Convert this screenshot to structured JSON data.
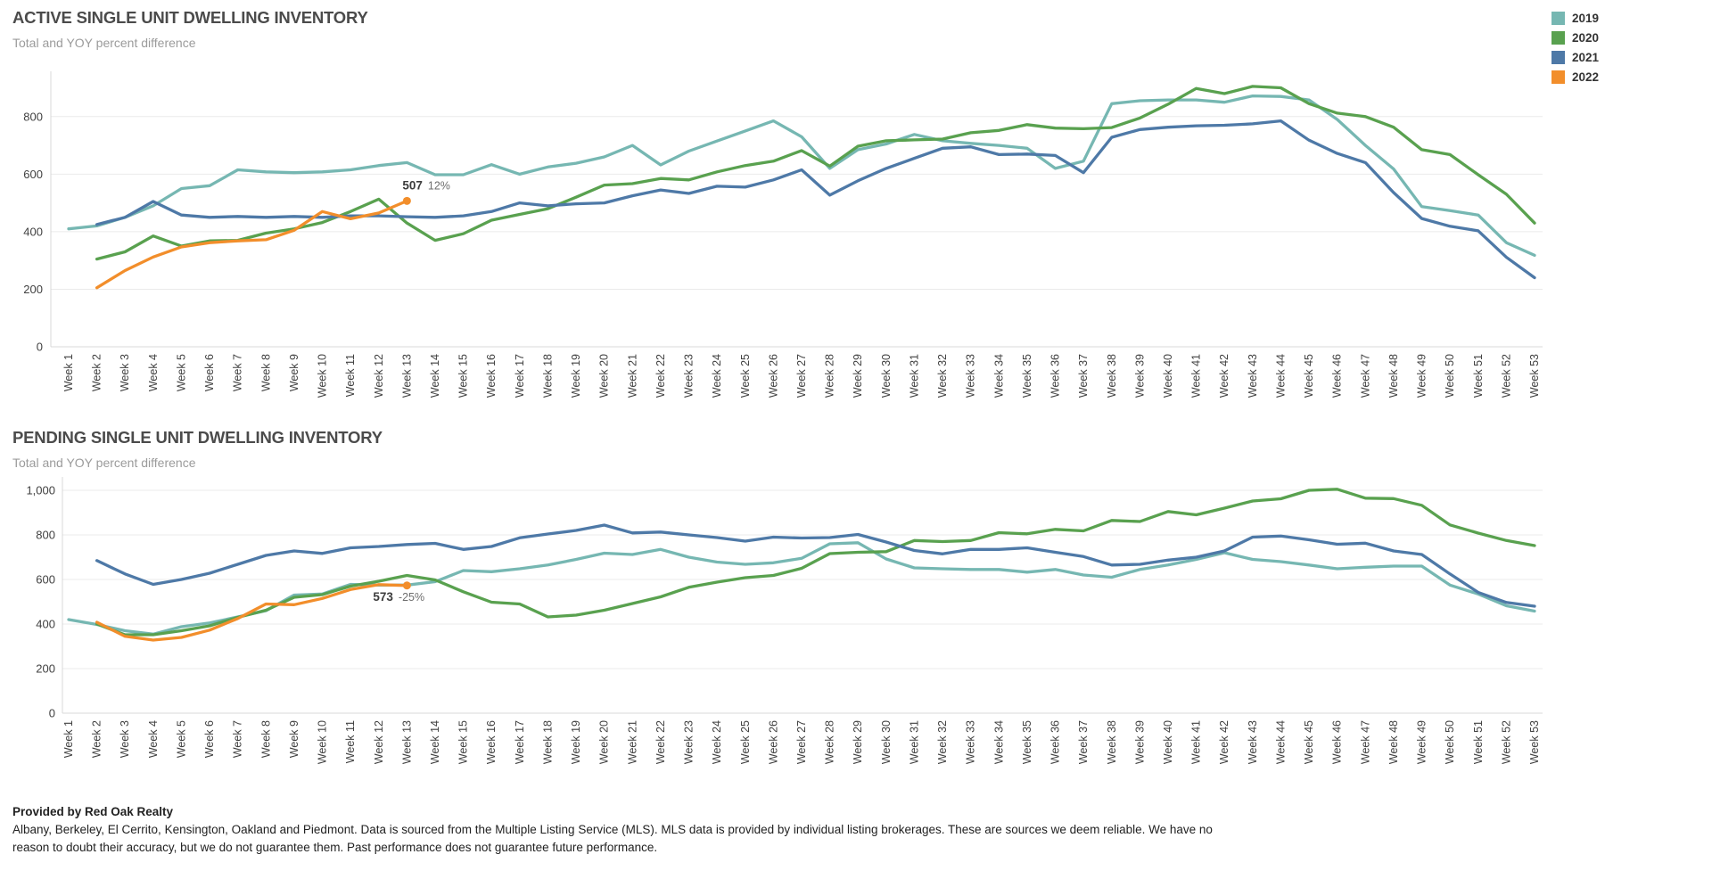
{
  "legend": {
    "items": [
      {
        "label": "2019",
        "color": "#76b7b2"
      },
      {
        "label": "2020",
        "color": "#59a14f"
      },
      {
        "label": "2021",
        "color": "#4e79a7"
      },
      {
        "label": "2022",
        "color": "#f28e2b"
      }
    ]
  },
  "weeks": [
    "Week 1",
    "Week 2",
    "Week 3",
    "Week 4",
    "Week 5",
    "Week 6",
    "Week 7",
    "Week 8",
    "Week 9",
    "Week 10",
    "Week 11",
    "Week 12",
    "Week 13",
    "Week 14",
    "Week 15",
    "Week 16",
    "Week 17",
    "Week 18",
    "Week 19",
    "Week 20",
    "Week 21",
    "Week 22",
    "Week 23",
    "Week 24",
    "Week 25",
    "Week 26",
    "Week 27",
    "Week 28",
    "Week 29",
    "Week 30",
    "Week 31",
    "Week 32",
    "Week 33",
    "Week 34",
    "Week 35",
    "Week 36",
    "Week 37",
    "Week 38",
    "Week 39",
    "Week 40",
    "Week 41",
    "Week 42",
    "Week 43",
    "Week 44",
    "Week 45",
    "Week 46",
    "Week 47",
    "Week 48",
    "Week 49",
    "Week 50",
    "Week 51",
    "Week 52",
    "Week 53"
  ],
  "chart_data": [
    {
      "id": "active",
      "type": "line",
      "title": "ACTIVE SINGLE UNIT DWELLING INVENTORY",
      "subtitle": "Total and YOY percent difference",
      "xlabel": "",
      "ylabel": "",
      "ylim": [
        0,
        950
      ],
      "grid": "horizontal",
      "legend_position": "top-right",
      "y_ticks": [
        {
          "value": 0,
          "label": "0"
        },
        {
          "value": 200,
          "label": "200"
        },
        {
          "value": 400,
          "label": "400"
        },
        {
          "value": 600,
          "label": "600"
        },
        {
          "value": 800,
          "label": "800"
        }
      ],
      "series": [
        {
          "name": "2019",
          "color": "#76b7b2",
          "values": [
            410,
            420,
            450,
            490,
            550,
            560,
            615,
            608,
            605,
            608,
            615,
            630,
            640,
            598,
            598,
            633,
            600,
            625,
            638,
            660,
            700,
            632,
            680,
            715,
            750,
            785,
            730,
            620,
            685,
            705,
            738,
            716,
            707,
            700,
            690,
            620,
            645,
            845,
            855,
            858,
            858,
            850,
            872,
            870,
            858,
            790,
            700,
            618,
            487,
            473,
            458,
            362,
            318
          ]
        },
        {
          "name": "2020",
          "color": "#59a14f",
          "values": [
            null,
            305,
            330,
            385,
            350,
            368,
            370,
            395,
            410,
            432,
            470,
            513,
            430,
            370,
            393,
            440,
            460,
            480,
            520,
            562,
            567,
            585,
            580,
            608,
            630,
            645,
            682,
            628,
            697,
            716,
            719,
            722,
            744,
            752,
            772,
            760,
            758,
            762,
            795,
            843,
            898,
            880,
            905,
            900,
            845,
            812,
            800,
            763,
            685,
            668,
            598,
            530,
            430
          ]
        },
        {
          "name": "2021",
          "color": "#4e79a7",
          "values": [
            null,
            425,
            450,
            505,
            458,
            450,
            453,
            450,
            453,
            450,
            455,
            455,
            452,
            450,
            455,
            470,
            500,
            490,
            497,
            500,
            525,
            545,
            533,
            558,
            555,
            580,
            615,
            527,
            577,
            620,
            655,
            690,
            695,
            668,
            670,
            665,
            605,
            728,
            755,
            763,
            768,
            770,
            775,
            785,
            718,
            672,
            640,
            536,
            446,
            419,
            403,
            311,
            240
          ]
        },
        {
          "name": "2022",
          "color": "#f28e2b",
          "values": [
            null,
            205,
            265,
            312,
            347,
            362,
            368,
            372,
            405,
            470,
            445,
            465,
            507,
            null,
            null,
            null,
            null,
            null,
            null,
            null,
            null,
            null,
            null,
            null,
            null,
            null,
            null,
            null,
            null,
            null,
            null,
            null,
            null,
            null,
            null,
            null,
            null,
            null,
            null,
            null,
            null,
            null,
            null,
            null,
            null,
            null,
            null,
            null,
            null,
            null,
            null,
            null,
            null
          ]
        }
      ],
      "annotation": {
        "series": "2022",
        "week_number": 13,
        "value": 507,
        "value_label": "507",
        "pct_label": "12%"
      }
    },
    {
      "id": "pending",
      "type": "line",
      "title": "PENDING SINGLE UNIT DWELLING INVENTORY",
      "subtitle": "Total and YOY percent difference",
      "xlabel": "",
      "ylabel": "",
      "ylim": [
        0,
        1060
      ],
      "grid": "horizontal",
      "legend_position": "shared-top-right",
      "y_ticks": [
        {
          "value": 0,
          "label": "0"
        },
        {
          "value": 200,
          "label": "200"
        },
        {
          "value": 400,
          "label": "400"
        },
        {
          "value": 600,
          "label": "600"
        },
        {
          "value": 800,
          "label": "800"
        },
        {
          "value": 1000,
          "label": "1,000"
        }
      ],
      "series": [
        {
          "name": "2019",
          "color": "#76b7b2",
          "values": [
            420,
            398,
            370,
            355,
            388,
            405,
            432,
            460,
            530,
            535,
            578,
            575,
            575,
            590,
            640,
            635,
            648,
            665,
            690,
            718,
            712,
            735,
            700,
            678,
            668,
            675,
            695,
            760,
            765,
            692,
            652,
            648,
            645,
            645,
            633,
            645,
            620,
            610,
            645,
            665,
            690,
            720,
            690,
            680,
            665,
            648,
            655,
            660,
            660,
            575,
            535,
            482,
            458
          ]
        },
        {
          "name": "2020",
          "color": "#59a14f",
          "values": [
            null,
            400,
            352,
            352,
            370,
            392,
            430,
            462,
            520,
            532,
            570,
            592,
            618,
            598,
            545,
            498,
            490,
            432,
            440,
            462,
            492,
            522,
            565,
            588,
            608,
            618,
            650,
            716,
            722,
            725,
            775,
            770,
            775,
            810,
            805,
            825,
            818,
            865,
            860,
            905,
            890,
            920,
            952,
            962,
            1000,
            1005,
            965,
            963,
            933,
            845,
            808,
            775,
            752
          ]
        },
        {
          "name": "2021",
          "color": "#4e79a7",
          "values": [
            null,
            685,
            625,
            578,
            600,
            628,
            668,
            708,
            728,
            717,
            742,
            748,
            757,
            762,
            735,
            748,
            787,
            804,
            820,
            844,
            809,
            813,
            800,
            788,
            772,
            790,
            786,
            788,
            802,
            768,
            730,
            715,
            735,
            735,
            742,
            722,
            703,
            665,
            668,
            687,
            700,
            728,
            790,
            795,
            778,
            758,
            763,
            728,
            712,
            625,
            542,
            497,
            480
          ]
        },
        {
          "name": "2022",
          "color": "#f28e2b",
          "values": [
            null,
            408,
            345,
            328,
            340,
            373,
            425,
            490,
            487,
            515,
            555,
            577,
            573,
            null,
            null,
            null,
            null,
            null,
            null,
            null,
            null,
            null,
            null,
            null,
            null,
            null,
            null,
            null,
            null,
            null,
            null,
            null,
            null,
            null,
            null,
            null,
            null,
            null,
            null,
            null,
            null,
            null,
            null,
            null,
            null,
            null,
            null,
            null,
            null,
            null,
            null,
            null,
            null
          ]
        }
      ],
      "annotation": {
        "series": "2022",
        "week_number": 13,
        "value": 573,
        "value_label": "573",
        "pct_label": "-25%"
      }
    }
  ],
  "footer": {
    "provider": "Provided by Red Oak Realty",
    "disclaimer": "Albany, Berkeley, El Cerrito, Kensington, Oakland and Piedmont. Data is sourced from the Multiple Listing Service (MLS). MLS data is provided by individual listing brokerages. These are sources we deem reliable. We have no reason to doubt their accuracy, but we do not guarantee them. Past performance does not guarantee future performance."
  }
}
